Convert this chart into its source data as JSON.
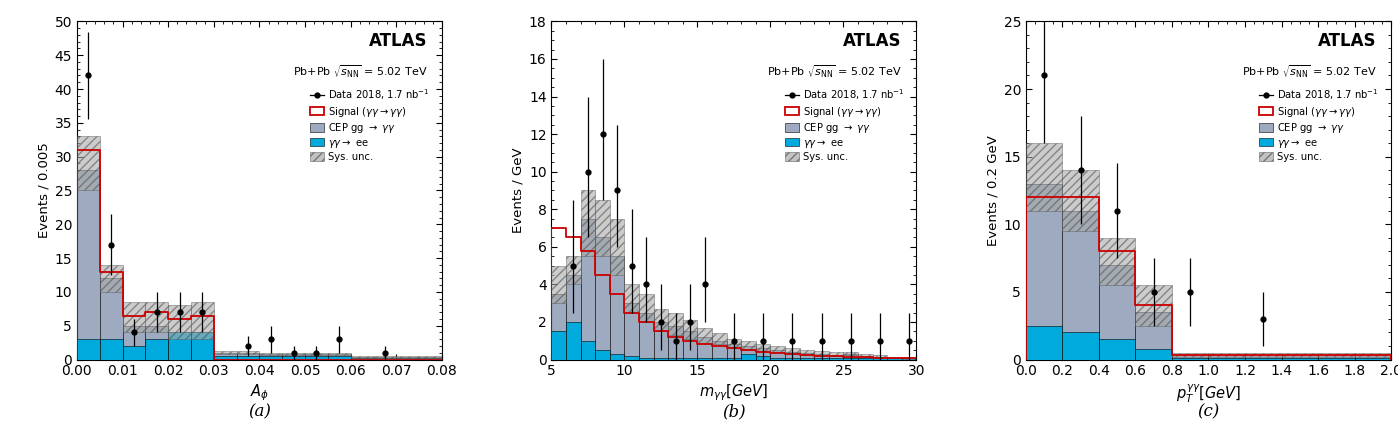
{
  "panel_a": {
    "xlabel": "A_{\\phi}",
    "ylabel": "Events / 0.005",
    "xlim": [
      0,
      0.08
    ],
    "ylim": [
      0,
      50
    ],
    "yticks": [
      0,
      5,
      10,
      15,
      20,
      25,
      30,
      35,
      40,
      45,
      50
    ],
    "xticks": [
      0,
      0.01,
      0.02,
      0.03,
      0.04,
      0.05,
      0.06,
      0.07,
      0.08
    ],
    "bin_edges": [
      0.0,
      0.005,
      0.01,
      0.015,
      0.02,
      0.025,
      0.03,
      0.035,
      0.04,
      0.045,
      0.05,
      0.055,
      0.06,
      0.065,
      0.07,
      0.075,
      0.08
    ],
    "signal": [
      31,
      13,
      6.5,
      7,
      6,
      6.5,
      0,
      0,
      0,
      0,
      0,
      0,
      0,
      0,
      0,
      0
    ],
    "cep": [
      28,
      12,
      5,
      5,
      4,
      4,
      1,
      1,
      0.8,
      0.8,
      0.8,
      0.8,
      0.3,
      0.3,
      0.3,
      0.3
    ],
    "yygee": [
      3,
      3,
      2,
      3,
      4,
      4,
      0.5,
      0.5,
      0.5,
      0.5,
      0.5,
      0.5,
      0.2,
      0.2,
      0.2,
      0.2
    ],
    "sys_unc_lo": [
      25,
      10,
      4,
      4,
      3,
      3,
      0.8,
      0.8,
      0.6,
      0.6,
      0.6,
      0.6,
      0.2,
      0.2,
      0.2,
      0.2
    ],
    "sys_unc_hi": [
      33,
      14,
      8.5,
      8.5,
      8,
      8.5,
      1.2,
      1.2,
      1.0,
      1.0,
      1.0,
      1.0,
      0.5,
      0.5,
      0.5,
      0.5
    ],
    "data_x": [
      0.0025,
      0.0075,
      0.0125,
      0.0175,
      0.0225,
      0.0275,
      0.0375,
      0.0425,
      0.0475,
      0.0525,
      0.0575,
      0.0675
    ],
    "data_y": [
      42,
      17,
      4,
      7,
      7,
      7,
      2,
      3,
      1,
      1,
      3,
      1
    ],
    "data_yerr_lo": [
      6.5,
      4.5,
      2,
      3,
      3,
      3,
      1.5,
      2,
      1,
      1,
      2,
      1
    ],
    "data_yerr_hi": [
      6.5,
      4.5,
      2,
      3,
      3,
      3,
      1.5,
      2,
      1,
      1,
      2,
      1
    ]
  },
  "panel_b": {
    "xlabel": "m_{\\gamma\\gamma} [GeV]",
    "ylabel": "Events / GeV",
    "xlim": [
      5,
      30
    ],
    "ylim": [
      0,
      18
    ],
    "yticks": [
      0,
      2,
      4,
      6,
      8,
      10,
      12,
      14,
      16,
      18
    ],
    "xticks": [
      5,
      10,
      15,
      20,
      25,
      30
    ],
    "bin_edges": [
      5,
      6,
      7,
      8,
      9,
      10,
      11,
      12,
      13,
      14,
      15,
      16,
      17,
      18,
      19,
      20,
      21,
      22,
      23,
      24,
      25,
      26,
      27,
      28,
      29,
      30
    ],
    "signal": [
      7.0,
      6.5,
      5.8,
      4.5,
      3.5,
      2.5,
      2.0,
      1.5,
      1.2,
      1.0,
      0.8,
      0.7,
      0.6,
      0.5,
      0.4,
      0.35,
      0.3,
      0.25,
      0.2,
      0.18,
      0.15,
      0.12,
      0.1,
      0.08,
      0.06
    ],
    "cep": [
      3.5,
      4.5,
      7.5,
      6.5,
      5.5,
      3.0,
      2.5,
      2.0,
      1.8,
      1.5,
      1.2,
      1.0,
      0.8,
      0.7,
      0.6,
      0.5,
      0.4,
      0.35,
      0.3,
      0.25,
      0.3,
      0.2,
      0.15,
      0.1,
      0.08
    ],
    "yygee": [
      1.5,
      2.0,
      1.0,
      0.5,
      0.3,
      0.2,
      0.1,
      0.1,
      0.1,
      0.1,
      0.1,
      0.1,
      0.1,
      0.3,
      0.2,
      0.1,
      0.1,
      0.1,
      0.1,
      0.1,
      0.1,
      0.1,
      0.1,
      0.1,
      0.1
    ],
    "sys_unc_lo": [
      3.0,
      4.0,
      5.5,
      5.5,
      4.5,
      2.5,
      2.0,
      1.5,
      1.3,
      1.1,
      0.9,
      0.8,
      0.6,
      0.5,
      0.45,
      0.4,
      0.3,
      0.25,
      0.2,
      0.18,
      0.22,
      0.15,
      0.1,
      0.07,
      0.05
    ],
    "sys_unc_hi": [
      5.0,
      5.5,
      9.0,
      8.5,
      7.5,
      4.0,
      3.5,
      2.7,
      2.5,
      2.1,
      1.7,
      1.4,
      1.1,
      1.0,
      0.8,
      0.7,
      0.6,
      0.5,
      0.45,
      0.38,
      0.42,
      0.3,
      0.24,
      0.16,
      0.13
    ],
    "data_x": [
      6.5,
      7.5,
      8.5,
      9.5,
      10.5,
      11.5,
      12.5,
      13.5,
      14.5,
      15.5,
      17.5,
      19.5,
      21.5,
      23.5,
      25.5,
      27.5,
      29.5
    ],
    "data_y": [
      5,
      10,
      12,
      9,
      5,
      4,
      2,
      1,
      2,
      4,
      1,
      1,
      1,
      1,
      1,
      1,
      1
    ],
    "data_yerr_lo": [
      2.5,
      3.5,
      3.5,
      3,
      2.5,
      2,
      1.5,
      1,
      1.5,
      2,
      1,
      1,
      1,
      1,
      1,
      1,
      1
    ],
    "data_yerr_hi": [
      3.5,
      4,
      4,
      3.5,
      3,
      2.5,
      2,
      1.5,
      2,
      2.5,
      1.5,
      1.5,
      1.5,
      1.5,
      1.5,
      1.5,
      1.5
    ]
  },
  "panel_c": {
    "xlabel": "p_{T}^{\\gamma\\gamma} [GeV]",
    "ylabel": "Events / 0.2 GeV",
    "xlim": [
      0,
      2
    ],
    "ylim": [
      0,
      25
    ],
    "yticks": [
      0,
      5,
      10,
      15,
      20,
      25
    ],
    "xticks": [
      0,
      0.2,
      0.4,
      0.6,
      0.8,
      1.0,
      1.2,
      1.4,
      1.6,
      1.8,
      2.0
    ],
    "bin_edges": [
      0.0,
      0.2,
      0.4,
      0.6,
      0.8,
      1.0,
      1.2,
      1.4,
      1.6,
      1.8,
      2.0
    ],
    "signal": [
      12,
      12,
      8,
      4,
      0.3,
      0.3,
      0.3,
      0.3,
      0.3,
      0.3
    ],
    "cep": [
      13,
      11,
      7,
      3.5,
      0.3,
      0.3,
      0.3,
      0.3,
      0.3,
      0.3
    ],
    "yygee": [
      2.5,
      2.0,
      1.5,
      0.8,
      0.1,
      0.1,
      0.1,
      0.1,
      0.1,
      0.1
    ],
    "sys_unc_lo": [
      11,
      9.5,
      5.5,
      2.5,
      0.2,
      0.2,
      0.2,
      0.2,
      0.2,
      0.2
    ],
    "sys_unc_hi": [
      16,
      14,
      9,
      5.5,
      0.5,
      0.5,
      0.5,
      0.5,
      0.5,
      0.5
    ],
    "data_x": [
      0.1,
      0.3,
      0.5,
      0.7,
      0.9,
      1.3
    ],
    "data_y": [
      21,
      14,
      11,
      5,
      5,
      3
    ],
    "data_yerr_lo": [
      5,
      4,
      3.5,
      2.5,
      2.5,
      2
    ],
    "data_yerr_hi": [
      5,
      4,
      3.5,
      2.5,
      2.5,
      2
    ]
  },
  "atlas_label": "ATLAS",
  "legend_entries": [
    "Data 2018, 1.7 nb$^{-1}$",
    "Signal ($\\gamma\\gamma \\rightarrow \\gamma\\gamma$)",
    "CEP gg $\\rightarrow$ $\\gamma\\gamma$",
    "$\\gamma\\gamma \\rightarrow$ ee",
    "Sys. unc."
  ],
  "color_signal": "#cc0000",
  "color_cep": "#9daabf",
  "color_yygee": "#00aadd",
  "color_sysunc_face": "#aaaaaa",
  "color_sysunc_edge": "#555555",
  "panel_labels": [
    "(a)",
    "(b)",
    "(c)"
  ]
}
